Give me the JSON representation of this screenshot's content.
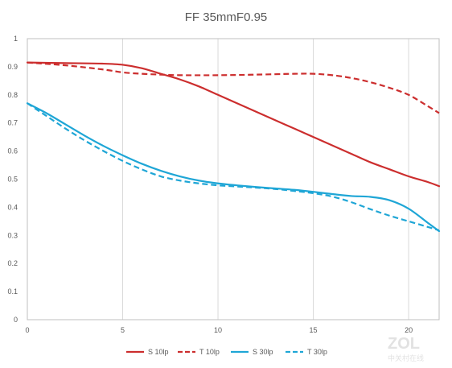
{
  "chart_data": {
    "type": "line",
    "title": "FF 35mmF0.95",
    "xlabel": "",
    "ylabel": "",
    "xlim": [
      0,
      21.6
    ],
    "ylim": [
      0,
      1
    ],
    "x_ticks": [
      "0",
      "5",
      "10",
      "15",
      "20"
    ],
    "y_ticks": [
      "0",
      "0.1",
      "0.2",
      "0.3",
      "0.4",
      "0.5",
      "0.6",
      "0.7",
      "0.8",
      "0.9",
      "1"
    ],
    "grid": "vertical",
    "legend_position": "bottom",
    "series": [
      {
        "name": "S 10lp",
        "color": "#cc2e2e",
        "dash": "solid",
        "points": [
          [
            0,
            0.915
          ],
          [
            2,
            0.913
          ],
          [
            4,
            0.911
          ],
          [
            5,
            0.907
          ],
          [
            6,
            0.895
          ],
          [
            7,
            0.875
          ],
          [
            8,
            0.855
          ],
          [
            9,
            0.83
          ],
          [
            10,
            0.8
          ],
          [
            11,
            0.77
          ],
          [
            12,
            0.74
          ],
          [
            13,
            0.71
          ],
          [
            14,
            0.68
          ],
          [
            15,
            0.65
          ],
          [
            16,
            0.62
          ],
          [
            17,
            0.59
          ],
          [
            18,
            0.56
          ],
          [
            19,
            0.535
          ],
          [
            20,
            0.51
          ],
          [
            21,
            0.49
          ],
          [
            21.6,
            0.475
          ]
        ]
      },
      {
        "name": "T 10lp",
        "color": "#cc2e2e",
        "dash": "dashed",
        "points": [
          [
            0,
            0.915
          ],
          [
            2,
            0.905
          ],
          [
            4,
            0.89
          ],
          [
            5,
            0.88
          ],
          [
            6,
            0.875
          ],
          [
            7,
            0.872
          ],
          [
            8,
            0.87
          ],
          [
            10,
            0.87
          ],
          [
            12,
            0.872
          ],
          [
            14,
            0.875
          ],
          [
            15,
            0.875
          ],
          [
            16,
            0.87
          ],
          [
            17,
            0.86
          ],
          [
            18,
            0.845
          ],
          [
            19,
            0.825
          ],
          [
            20,
            0.8
          ],
          [
            21,
            0.76
          ],
          [
            21.6,
            0.735
          ]
        ]
      },
      {
        "name": "S 30lp",
        "color": "#1fa6d6",
        "dash": "solid",
        "points": [
          [
            0,
            0.77
          ],
          [
            1,
            0.735
          ],
          [
            2,
            0.695
          ],
          [
            3,
            0.655
          ],
          [
            4,
            0.618
          ],
          [
            5,
            0.585
          ],
          [
            6,
            0.555
          ],
          [
            7,
            0.53
          ],
          [
            8,
            0.51
          ],
          [
            9,
            0.495
          ],
          [
            10,
            0.485
          ],
          [
            11,
            0.478
          ],
          [
            12,
            0.472
          ],
          [
            13,
            0.467
          ],
          [
            14,
            0.462
          ],
          [
            15,
            0.455
          ],
          [
            16,
            0.447
          ],
          [
            17,
            0.44
          ],
          [
            18,
            0.437
          ],
          [
            19,
            0.425
          ],
          [
            20,
            0.395
          ],
          [
            21,
            0.345
          ],
          [
            21.6,
            0.315
          ]
        ]
      },
      {
        "name": "T 30lp",
        "color": "#1fa6d6",
        "dash": "dashed",
        "points": [
          [
            0,
            0.77
          ],
          [
            1,
            0.725
          ],
          [
            2,
            0.68
          ],
          [
            3,
            0.638
          ],
          [
            4,
            0.6
          ],
          [
            5,
            0.565
          ],
          [
            6,
            0.535
          ],
          [
            7,
            0.51
          ],
          [
            8,
            0.495
          ],
          [
            9,
            0.485
          ],
          [
            10,
            0.478
          ],
          [
            11,
            0.474
          ],
          [
            12,
            0.47
          ],
          [
            13,
            0.465
          ],
          [
            14,
            0.458
          ],
          [
            15,
            0.45
          ],
          [
            16,
            0.438
          ],
          [
            17,
            0.418
          ],
          [
            18,
            0.393
          ],
          [
            19,
            0.37
          ],
          [
            20,
            0.35
          ],
          [
            21,
            0.33
          ],
          [
            21.6,
            0.318
          ]
        ]
      }
    ]
  },
  "watermark": {
    "logo": "ZOL",
    "sub": "中关村在线"
  }
}
